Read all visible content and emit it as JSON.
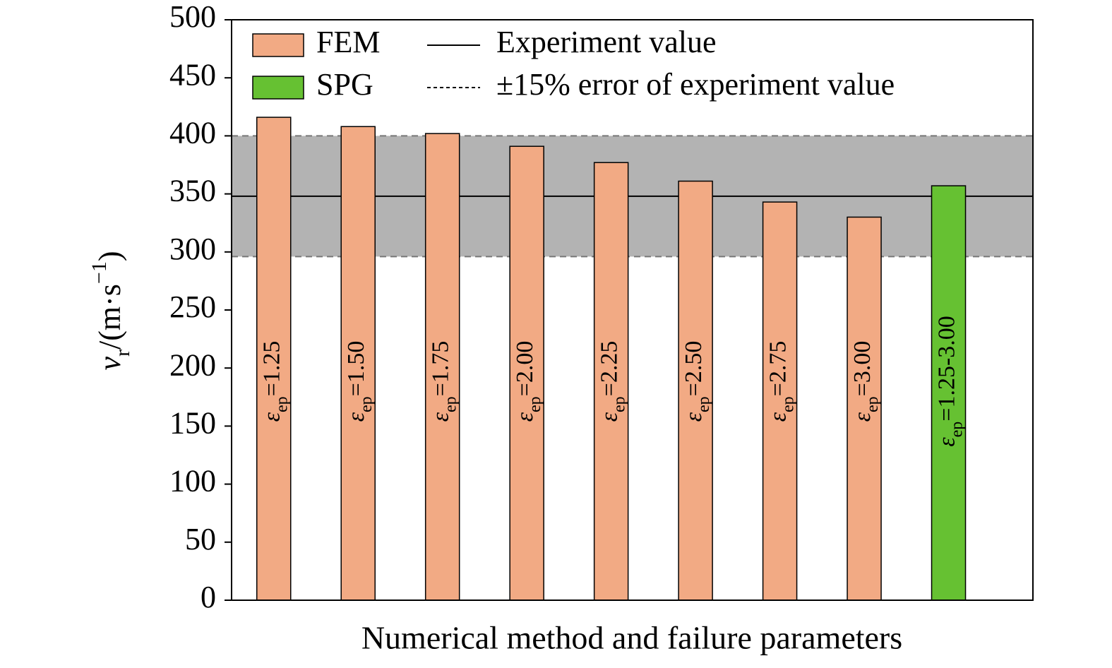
{
  "chart_data": {
    "type": "bar",
    "xlabel": "Numerical method and failure parameters",
    "ylabel": {
      "main": "v",
      "sub": "r",
      "unit": "/(m·s",
      "sup": "−1",
      "close": ")"
    },
    "category_symbol": "ε",
    "category_subscript": "ep",
    "categories": [
      "=1.25",
      "=1.50",
      "=1.75",
      "=2.00",
      "=2.25",
      "=2.50",
      "=2.75",
      "=3.00",
      "=1.25-3.00"
    ],
    "series": [
      {
        "name": "FEM",
        "color": "#f2aa84",
        "values": [
          416,
          408,
          402,
          391,
          377,
          361,
          343,
          330,
          null
        ]
      },
      {
        "name": "SPG",
        "color": "#66c132",
        "values": [
          null,
          null,
          null,
          null,
          null,
          null,
          null,
          null,
          357
        ]
      }
    ],
    "reference": {
      "name": "Experiment value",
      "value": 348
    },
    "band": {
      "name": "±15% error of experiment value",
      "range": [
        296,
        400
      ],
      "color": "#b3b3b3"
    },
    "ylim": [
      0,
      500
    ],
    "yticks": [
      0,
      50,
      100,
      150,
      200,
      250,
      300,
      350,
      400,
      450,
      500
    ],
    "legend": "top-left"
  }
}
